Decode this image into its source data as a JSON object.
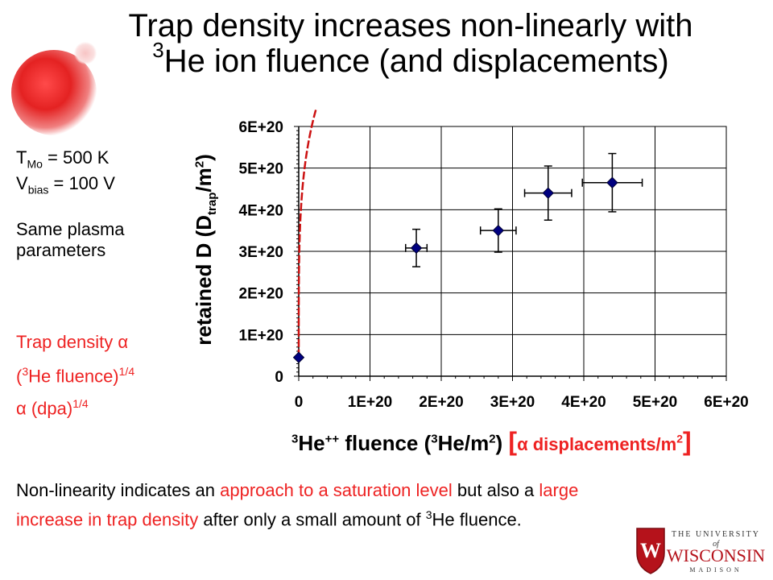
{
  "slide": {
    "title_line1": "Trap density increases non-linearly with",
    "title_sup": "3",
    "title_line2": "He ion fluence (and displacements)"
  },
  "conditions": {
    "t_main": "T",
    "t_sub": "Mo",
    "t_value": " = 500 K",
    "v_main": "V",
    "v_sub": "bias",
    "v_value": " = 100 V",
    "plasma_line1": "Same plasma",
    "plasma_line2": "parameters"
  },
  "relation": {
    "line1": "Trap density α",
    "line2_a": "(",
    "line2_sup": "3",
    "line2_b": "He fluence)",
    "line2_exp": "1/4",
    "line3_a": "α (dpa)",
    "line3_exp": "1/4"
  },
  "axis_titles": {
    "x_sup1": "3",
    "x_part1": "He",
    "x_sup2": "++",
    "x_part2": " fluence (",
    "x_sup3": "3",
    "x_part3": "He/m",
    "x_sup4": "2",
    "x_part4": ") ",
    "x_bracket_open": "[",
    "x_alt": "α displacements/m",
    "x_alt_sup": "2",
    "x_bracket_close": "]",
    "y_part1": "retained D (D",
    "y_sub": "trap",
    "y_part2": "/m",
    "y_sup": "2",
    "y_part3": ")"
  },
  "conclusion": {
    "t1": "Non-linearity indicates an ",
    "t2": "approach to a saturation level",
    "t3": " but also a ",
    "t4": "large increase in trap density",
    "t5": " after only a small amount of ",
    "sup": "3",
    "t6": "He fluence."
  },
  "logo": {
    "line1": "THE UNIVERSITY",
    "line2": "of",
    "line3": "WISCONSIN",
    "line4": "MADISON",
    "crest_letter": "W"
  },
  "colors": {
    "accent_red": "#ee2222",
    "marker": "#000080",
    "fit": "#cc1111",
    "crest": "#b5121b"
  },
  "chart_data": {
    "type": "scatter",
    "x_ticks": [
      "0",
      "1E+20",
      "2E+20",
      "3E+20",
      "4E+20",
      "5E+20",
      "6E+20"
    ],
    "y_ticks": [
      "0",
      "1E+20",
      "2E+20",
      "3E+20",
      "4E+20",
      "5E+20",
      "6E+20"
    ],
    "xlim": [
      0,
      6e+20
    ],
    "ylim": [
      0,
      6e+20
    ],
    "grid": true,
    "points": [
      {
        "x": 0,
        "y": 4.5e+19,
        "xerr": 0,
        "yerr": 0
      },
      {
        "x": 1.65e+20,
        "y": 3.08e+20,
        "xerr": 1.5e+19,
        "yerr": 4.5e+19
      },
      {
        "x": 2.8e+20,
        "y": 3.5e+20,
        "xerr": 2.5e+19,
        "yerr": 5.2e+19
      },
      {
        "x": 3.5e+20,
        "y": 4.4e+20,
        "xerr": 3.3e+19,
        "yerr": 6.5e+19
      },
      {
        "x": 4.4e+20,
        "y": 4.65e+20,
        "xerr": 4.2e+19,
        "yerr": 7e+19
      }
    ],
    "fit": {
      "form": "y = a + b * x^(1/4)",
      "a": 4.5e+19,
      "b": 8500000000000000.0,
      "x_start": 0,
      "x_end": 6e+20
    }
  }
}
